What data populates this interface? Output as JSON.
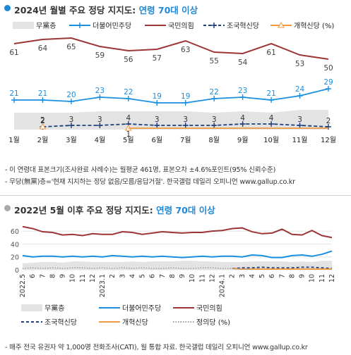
{
  "section1": {
    "title_prefix": "2024년 월별 주요 정당 지지도: ",
    "title_highlight": "연령 70대 이상",
    "notes": [
      "- 이 연령대 표본크기(조사완료 사례수)는 월평균 461명, 표본오차 ±4.6%포인트(95% 신뢰수준)",
      "- 무당(無黨)층='현재 지지하는 정당 없음/모름/응답거절'. 한국갤럽 데일리 오피니언 www.gallup.co.kr"
    ]
  },
  "section2": {
    "title_prefix": "2022년 5월 이후 주요 정당 지지도: ",
    "title_highlight": "연령 70대 이상",
    "note": "- 매주 전국 유권자 약 1,000명 전화조사(CATI), 월 통합 자료. 한국갤럽 데일리 오피니언 www.gallup.co.kr"
  },
  "colors": {
    "blue": "#1a8fe0",
    "red": "#9c3636",
    "navy": "#1e3f7a",
    "orange": "#ef9a40",
    "gray_area": "#e3e3e3",
    "gray_dotted": "#9a9a9a",
    "accent": "#1e88d8"
  },
  "chart_data": [
    {
      "type": "line",
      "categories": [
        "1월",
        "2월",
        "3월",
        "4월",
        "5월",
        "6월",
        "7월",
        "8월",
        "9월",
        "10월",
        "11월",
        "12월"
      ],
      "series": [
        {
          "name": "무黨층",
          "style": "area",
          "values": [
            12,
            12,
            12,
            13,
            13,
            13,
            13,
            12,
            13,
            12,
            14,
            14
          ]
        },
        {
          "name": "더불어민주당",
          "values": [
            21,
            21,
            20,
            23,
            22,
            19,
            19,
            22,
            23,
            21,
            24,
            29
          ]
        },
        {
          "name": "국민의힘",
          "values": [
            61,
            64,
            65,
            59,
            56,
            57,
            63,
            55,
            54,
            61,
            53,
            50
          ]
        },
        {
          "name": "조국혁신당",
          "values": [
            null,
            2,
            3,
            3,
            4,
            3,
            3,
            3,
            4,
            4,
            3,
            2
          ]
        },
        {
          "name": "개혁신당 (%)",
          "values": [
            null,
            2,
            null,
            null,
            1,
            null,
            null,
            null,
            null,
            null,
            null,
            null
          ]
        }
      ],
      "point_labels": {
        "더불어민주당": [
          21,
          21,
          20,
          23,
          22,
          19,
          19,
          22,
          23,
          21,
          24,
          29
        ],
        "국민의힘": [
          61,
          64,
          65,
          59,
          56,
          57,
          63,
          55,
          54,
          61,
          53,
          50
        ],
        "조국혁신당": [
          null,
          2,
          3,
          3,
          4,
          3,
          3,
          3,
          4,
          4,
          3,
          2
        ],
        "개혁신당 (%)": [
          null,
          null,
          null,
          null,
          1,
          null,
          null,
          null,
          null,
          null,
          null,
          null
        ]
      },
      "ylim": [
        0,
        70
      ],
      "grid": false,
      "legend": "top"
    },
    {
      "type": "line",
      "x_tick_labels": [
        "2022.5",
        "6",
        "7",
        "8",
        "9",
        "10",
        "11",
        "12",
        "2023.1",
        "2",
        "3",
        "4",
        "5",
        "6",
        "7",
        "8",
        "9",
        "10",
        "11",
        "12",
        "2024.1",
        "2",
        "3",
        "4",
        "5",
        "6",
        "7",
        "8",
        "9",
        "10",
        "11",
        "12"
      ],
      "y_ticks": [
        0,
        20,
        40,
        60
      ],
      "ylim": [
        0,
        70
      ],
      "series": [
        {
          "name": "무黨층",
          "style": "area",
          "values": [
            10,
            11,
            12,
            12,
            11,
            13,
            13,
            12,
            12,
            12,
            12,
            13,
            12,
            13,
            13,
            13,
            14,
            14,
            13,
            13,
            12,
            12,
            12,
            13,
            13,
            13,
            13,
            12,
            13,
            12,
            14,
            14
          ]
        },
        {
          "name": "더불어민주당",
          "values": [
            22,
            20,
            21,
            21,
            20,
            21,
            20,
            21,
            20,
            22,
            21,
            20,
            21,
            20,
            21,
            20,
            19,
            20,
            21,
            20,
            21,
            21,
            20,
            23,
            22,
            19,
            19,
            22,
            23,
            21,
            24,
            29
          ]
        },
        {
          "name": "국민의힘",
          "values": [
            67,
            64,
            59,
            58,
            54,
            55,
            53,
            56,
            55,
            55,
            59,
            58,
            55,
            57,
            59,
            58,
            57,
            58,
            58,
            60,
            61,
            64,
            65,
            59,
            56,
            57,
            63,
            55,
            54,
            61,
            53,
            50
          ]
        },
        {
          "name": "조국혁신당",
          "values": [
            null,
            null,
            null,
            null,
            null,
            null,
            null,
            null,
            null,
            null,
            null,
            null,
            null,
            null,
            null,
            null,
            null,
            null,
            null,
            null,
            null,
            2,
            3,
            3,
            4,
            3,
            3,
            3,
            4,
            4,
            3,
            2
          ]
        },
        {
          "name": "개혁신당",
          "values": [
            null,
            null,
            null,
            null,
            null,
            null,
            null,
            null,
            null,
            null,
            null,
            null,
            null,
            null,
            null,
            null,
            null,
            null,
            null,
            null,
            null,
            2,
            1,
            1,
            1,
            1,
            1,
            1,
            1,
            1,
            1,
            1
          ]
        },
        {
          "name": "정의당 (%)",
          "values": [
            2,
            3,
            2,
            3,
            2,
            3,
            3,
            2,
            3,
            2,
            3,
            2,
            3,
            2,
            2,
            3,
            2,
            2,
            3,
            3,
            2,
            2,
            1,
            1,
            null,
            null,
            null,
            null,
            null,
            null,
            null,
            null
          ]
        }
      ],
      "grid": true,
      "legend": "bottom"
    }
  ]
}
